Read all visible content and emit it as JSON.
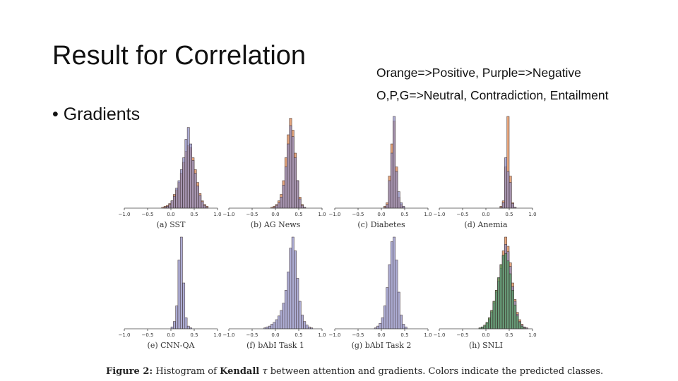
{
  "slide": {
    "title": "Result for Correlation",
    "bullet": "• Gradients",
    "legend_line1": "Orange=>Positive, Purple=>Negative",
    "legend_line2": "O,P,G=>Neutral, Contradiction, Entailment"
  },
  "colors": {
    "orange": "#d9824a",
    "purple": "#8e8ec4",
    "green": "#4f9a5f"
  },
  "figure_caption": {
    "label": "Figure 2:",
    "text_before": " Histogram of ",
    "kendall": "Kendall",
    "tau": "τ",
    "text_after": " between attention and gradients. Colors indicate the predicted classes."
  },
  "chart_data": [
    {
      "type": "histogram",
      "caption": "(a) SST",
      "xlim": [
        -1.0,
        1.0
      ],
      "xticks": [
        "−1.0",
        "−0.5",
        "0.0",
        "0.5",
        "1.0"
      ],
      "bins": [
        -0.2,
        -0.15,
        -0.1,
        -0.05,
        0.0,
        0.05,
        0.1,
        0.15,
        0.2,
        0.25,
        0.3,
        0.35,
        0.4,
        0.45,
        0.5,
        0.55,
        0.6,
        0.65,
        0.7,
        0.75
      ],
      "series": [
        {
          "name": "Positive",
          "color": "orange",
          "values": [
            0.01,
            0.02,
            0.03,
            0.05,
            0.08,
            0.15,
            0.2,
            0.28,
            0.38,
            0.5,
            0.62,
            0.68,
            0.66,
            0.55,
            0.42,
            0.28,
            0.16,
            0.08,
            0.04,
            0.02
          ]
        },
        {
          "name": "Negative",
          "color": "purple",
          "values": [
            0.0,
            0.01,
            0.02,
            0.04,
            0.08,
            0.13,
            0.22,
            0.3,
            0.42,
            0.55,
            0.75,
            0.88,
            0.7,
            0.52,
            0.38,
            0.24,
            0.14,
            0.07,
            0.03,
            0.01
          ]
        }
      ]
    },
    {
      "type": "histogram",
      "caption": "(b) AG News",
      "xlim": [
        -1.0,
        1.0
      ],
      "xticks": [
        "−1.0",
        "−0.5",
        "0.0",
        "0.5",
        "1.0"
      ],
      "bins": [
        -0.1,
        -0.05,
        0.0,
        0.05,
        0.1,
        0.15,
        0.2,
        0.25,
        0.3,
        0.35,
        0.4,
        0.45,
        0.5,
        0.55,
        0.6
      ],
      "series": [
        {
          "name": "Positive",
          "color": "orange",
          "values": [
            0.01,
            0.02,
            0.04,
            0.08,
            0.15,
            0.3,
            0.55,
            0.8,
            0.98,
            0.85,
            0.6,
            0.3,
            0.12,
            0.04,
            0.01
          ]
        },
        {
          "name": "Negative",
          "color": "purple",
          "values": [
            0.0,
            0.01,
            0.03,
            0.06,
            0.12,
            0.25,
            0.45,
            0.7,
            0.9,
            0.78,
            0.55,
            0.3,
            0.1,
            0.03,
            0.01
          ]
        }
      ]
    },
    {
      "type": "histogram",
      "caption": "(c) Diabetes",
      "xlim": [
        -1.0,
        1.0
      ],
      "xticks": [
        "−1.0",
        "−0.5",
        "0.0",
        "0.5",
        "1.0"
      ],
      "bins": [
        0.05,
        0.1,
        0.15,
        0.2,
        0.25,
        0.3,
        0.35,
        0.4,
        0.45
      ],
      "series": [
        {
          "name": "Positive",
          "color": "orange",
          "values": [
            0.02,
            0.06,
            0.35,
            0.7,
            0.95,
            0.45,
            0.12,
            0.04,
            0.01
          ]
        },
        {
          "name": "Negative",
          "color": "purple",
          "values": [
            0.01,
            0.04,
            0.3,
            0.6,
            1.0,
            0.4,
            0.18,
            0.06,
            0.02
          ]
        }
      ]
    },
    {
      "type": "histogram",
      "caption": "(d) Anemia",
      "xlim": [
        -1.0,
        1.0
      ],
      "xticks": [
        "−1.0",
        "−0.5",
        "0.0",
        "0.5",
        "1.0"
      ],
      "bins": [
        0.3,
        0.35,
        0.4,
        0.45,
        0.5,
        0.55,
        0.6
      ],
      "series": [
        {
          "name": "Positive",
          "color": "orange",
          "values": [
            0.02,
            0.08,
            0.45,
            1.0,
            0.35,
            0.06,
            0.01
          ]
        },
        {
          "name": "Negative",
          "color": "purple",
          "values": [
            0.01,
            0.06,
            0.55,
            0.4,
            0.28,
            0.05,
            0.01
          ]
        }
      ]
    },
    {
      "type": "histogram",
      "caption": "(e) CNN-QA",
      "xlim": [
        -1.0,
        1.0
      ],
      "xticks": [
        "−1.0",
        "−0.5",
        "0.0",
        "0.5",
        "1.0"
      ],
      "bins": [
        0.0,
        0.05,
        0.1,
        0.15,
        0.2,
        0.25,
        0.3,
        0.35,
        0.4
      ],
      "series": [
        {
          "name": "Negative",
          "color": "purple",
          "values": [
            0.02,
            0.08,
            0.25,
            0.75,
            1.0,
            0.5,
            0.12,
            0.03,
            0.01
          ]
        }
      ]
    },
    {
      "type": "histogram",
      "caption": "(f) bAbI Task 1",
      "xlim": [
        -1.0,
        1.0
      ],
      "xticks": [
        "−1.0",
        "−0.5",
        "0.0",
        "0.5",
        "1.0"
      ],
      "bins": [
        -0.25,
        -0.2,
        -0.15,
        -0.1,
        -0.05,
        0.0,
        0.05,
        0.1,
        0.15,
        0.2,
        0.25,
        0.3,
        0.35,
        0.4,
        0.45,
        0.5,
        0.55,
        0.6,
        0.65,
        0.7,
        0.75
      ],
      "series": [
        {
          "name": "Negative",
          "color": "purple",
          "values": [
            0.01,
            0.02,
            0.03,
            0.05,
            0.07,
            0.1,
            0.14,
            0.2,
            0.28,
            0.42,
            0.62,
            0.88,
            1.0,
            0.85,
            0.55,
            0.3,
            0.15,
            0.08,
            0.04,
            0.02,
            0.01
          ]
        }
      ]
    },
    {
      "type": "histogram",
      "caption": "(g) bAbI Task 2",
      "xlim": [
        -1.0,
        1.0
      ],
      "xticks": [
        "−1.0",
        "−0.5",
        "0.0",
        "0.5",
        "1.0"
      ],
      "bins": [
        -0.15,
        -0.1,
        -0.05,
        0.0,
        0.05,
        0.1,
        0.15,
        0.2,
        0.25,
        0.3,
        0.35,
        0.4,
        0.45,
        0.5
      ],
      "series": [
        {
          "name": "Negative",
          "color": "purple",
          "values": [
            0.01,
            0.03,
            0.06,
            0.12,
            0.25,
            0.45,
            0.7,
            0.95,
            1.0,
            0.75,
            0.4,
            0.15,
            0.05,
            0.02
          ]
        }
      ]
    },
    {
      "type": "histogram",
      "caption": "(h) SNLI",
      "xlim": [
        -1.0,
        1.0
      ],
      "xticks": [
        "−1.0",
        "−0.5",
        "0.0",
        "0.5",
        "1.0"
      ],
      "bins": [
        -0.15,
        -0.1,
        -0.05,
        0.0,
        0.05,
        0.1,
        0.15,
        0.2,
        0.25,
        0.3,
        0.35,
        0.4,
        0.45,
        0.5,
        0.55,
        0.6,
        0.65,
        0.7,
        0.75,
        0.8,
        0.85
      ],
      "series": [
        {
          "name": "Neutral",
          "color": "orange",
          "values": [
            0.01,
            0.02,
            0.04,
            0.07,
            0.12,
            0.2,
            0.3,
            0.42,
            0.55,
            0.7,
            0.85,
            1.0,
            0.9,
            0.72,
            0.5,
            0.32,
            0.18,
            0.1,
            0.05,
            0.02,
            0.01
          ]
        },
        {
          "name": "Contradiction",
          "color": "purple",
          "values": [
            0.01,
            0.02,
            0.03,
            0.06,
            0.1,
            0.18,
            0.28,
            0.4,
            0.52,
            0.66,
            0.8,
            0.92,
            0.84,
            0.68,
            0.46,
            0.3,
            0.16,
            0.08,
            0.04,
            0.02,
            0.01
          ]
        },
        {
          "name": "Entailment",
          "color": "green",
          "values": [
            0.01,
            0.02,
            0.04,
            0.07,
            0.12,
            0.2,
            0.3,
            0.42,
            0.56,
            0.7,
            0.8,
            0.82,
            0.74,
            0.6,
            0.42,
            0.26,
            0.14,
            0.07,
            0.03,
            0.01,
            0.0
          ]
        }
      ]
    }
  ]
}
